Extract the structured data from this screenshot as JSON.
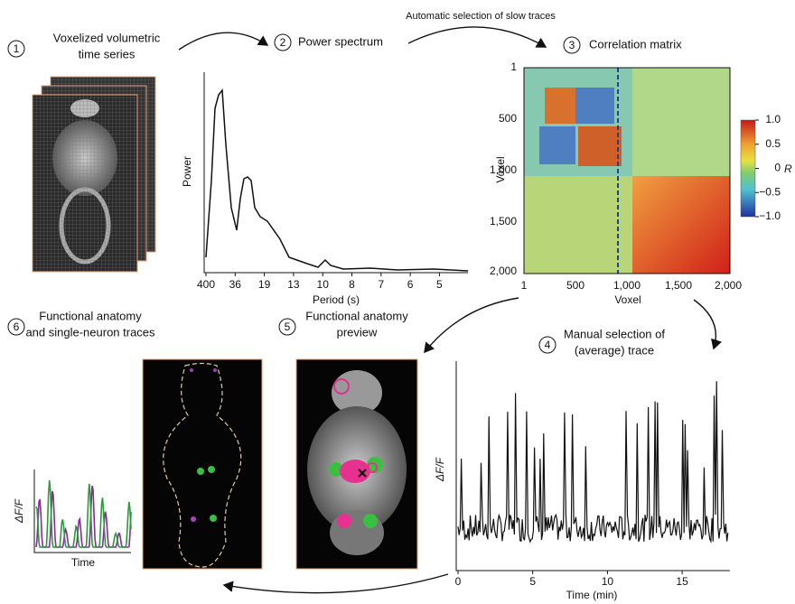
{
  "steps": [
    {
      "number": "1",
      "title": [
        "Voxelized volumetric",
        "time series"
      ]
    },
    {
      "number": "2",
      "title": [
        "Power spectrum"
      ]
    },
    {
      "number": "3",
      "title": [
        "Correlation matrix"
      ]
    },
    {
      "number": "4",
      "title": [
        "Manual selection of",
        "(average) trace"
      ]
    },
    {
      "number": "5",
      "title": [
        "Functional anatomy",
        "preview"
      ]
    },
    {
      "number": "6",
      "title": [
        "Functional anatomy",
        "and single-neuron traces"
      ]
    }
  ],
  "arrow_label": "Automatic selection of slow traces",
  "power_spectrum": {
    "y_label": "Power",
    "x_label": "Period (s)",
    "x_ticks": [
      "400",
      "36",
      "19",
      "13",
      "10",
      "8",
      "7",
      "6",
      "5"
    ]
  },
  "correlation_matrix": {
    "y_label": "Voxel",
    "x_label": "Voxel",
    "y_ticks": [
      "1",
      "500",
      "1,000",
      "1,500",
      "2,000"
    ],
    "x_ticks": [
      "1",
      "500",
      "1,000",
      "1,500",
      "2,000"
    ],
    "colorbar_ticks": [
      "1.0",
      "0.5",
      "0",
      "−0.5",
      "−1.0"
    ],
    "colorbar_label": "R"
  },
  "trace": {
    "y_label": "ΔF/F",
    "x_label": "Time (min)",
    "x_ticks": [
      "0",
      "5",
      "10",
      "15"
    ]
  },
  "neuron_traces": {
    "y_label": "ΔF/F",
    "x_label": "Time"
  }
}
